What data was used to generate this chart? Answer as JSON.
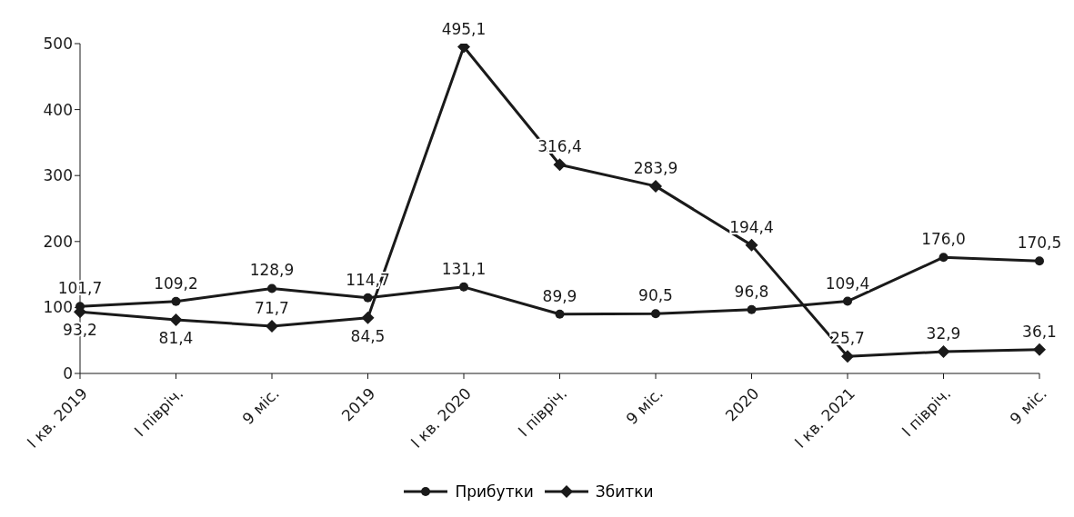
{
  "chart_data": {
    "type": "line",
    "categories": [
      "I кв. 2019",
      "I півріч.",
      "9 міс.",
      "2019",
      "I кв. 2020",
      "I півріч.",
      "9 міс.",
      "2020",
      "I кв. 2021",
      "I півріч.",
      "9 міс."
    ],
    "series": [
      {
        "name": "Прибутки",
        "color": "#1a1a1a",
        "marker": "circle",
        "values": [
          101.7,
          109.2,
          128.9,
          114.7,
          131.1,
          89.9,
          90.5,
          96.8,
          109.4,
          176.0,
          170.5
        ],
        "value_labels": [
          "101,7",
          "109,2",
          "128,9",
          "114,7",
          "131,1",
          "89,9",
          "90,5",
          "96,8",
          "109,4",
          "176,0",
          "170,5"
        ]
      },
      {
        "name": "Збитки",
        "color": "#1a1a1a",
        "marker": "diamond",
        "values": [
          93.2,
          81.4,
          71.7,
          84.5,
          495.1,
          316.4,
          283.9,
          194.4,
          25.7,
          32.9,
          36.1
        ],
        "value_labels": [
          "93,2",
          "81,4",
          "71,7",
          "84,5",
          "495,1",
          "316,4",
          "283,9",
          "194,4",
          "25,7",
          "32,9",
          "36,1"
        ]
      }
    ],
    "ylim": [
      0,
      500
    ],
    "yticks": [
      0,
      100,
      200,
      300,
      400,
      500
    ],
    "grid": false,
    "legend": "bottom",
    "line_style": "solid"
  }
}
